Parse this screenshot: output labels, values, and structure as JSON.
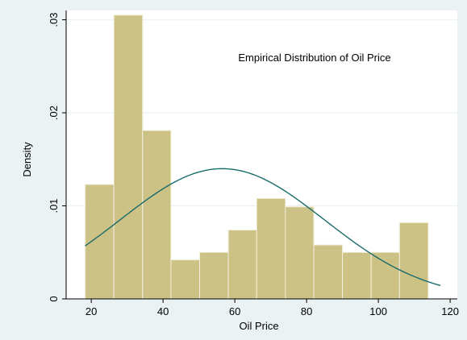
{
  "chart_data": {
    "type": "bar",
    "subtype": "histogram",
    "xlabel": "Oil Price",
    "ylabel": "Density",
    "annotation": "Empirical Distribution of Oil Price",
    "xlim": [
      13,
      122
    ],
    "ylim": [
      0,
      0.031
    ],
    "x_ticks": [
      {
        "value": 20,
        "label": "20"
      },
      {
        "value": 40,
        "label": "40"
      },
      {
        "value": 60,
        "label": "60"
      },
      {
        "value": 80,
        "label": "80"
      },
      {
        "value": 100,
        "label": "100"
      },
      {
        "value": 120,
        "label": "120"
      }
    ],
    "y_ticks": [
      {
        "value": 0,
        "label": "0"
      },
      {
        "value": 0.01,
        "label": ".01"
      },
      {
        "value": 0.02,
        "label": ".02"
      },
      {
        "value": 0.03,
        "label": ".03"
      }
    ],
    "grid": true,
    "bins": [
      {
        "start": 18.3,
        "end": 26.3,
        "density": 0.0123
      },
      {
        "start": 26.3,
        "end": 34.3,
        "density": 0.0305
      },
      {
        "start": 34.3,
        "end": 42.2,
        "density": 0.0181
      },
      {
        "start": 42.2,
        "end": 50.2,
        "density": 0.0042
      },
      {
        "start": 50.2,
        "end": 58.2,
        "density": 0.005
      },
      {
        "start": 58.2,
        "end": 66.1,
        "density": 0.0074
      },
      {
        "start": 66.1,
        "end": 74.1,
        "density": 0.0108
      },
      {
        "start": 74.1,
        "end": 82.0,
        "density": 0.0099
      },
      {
        "start": 82.0,
        "end": 90.0,
        "density": 0.0058
      },
      {
        "start": 90.0,
        "end": 98.0,
        "density": 0.005
      },
      {
        "start": 98.0,
        "end": 105.9,
        "density": 0.005
      },
      {
        "start": 105.9,
        "end": 113.9,
        "density": 0.0082
      }
    ],
    "normal_curve": {
      "mean": 56.5,
      "sd": 28.5,
      "x_range": [
        18.3,
        117.3
      ]
    },
    "colors": {
      "bar_fill": "#cdc286",
      "bar_stroke": "#f2eedb",
      "curve": "#1a6b6b",
      "plot_bg": "#ffffff",
      "outer_bg": "#eaf2f3",
      "grid": "#eaf2f3"
    }
  }
}
